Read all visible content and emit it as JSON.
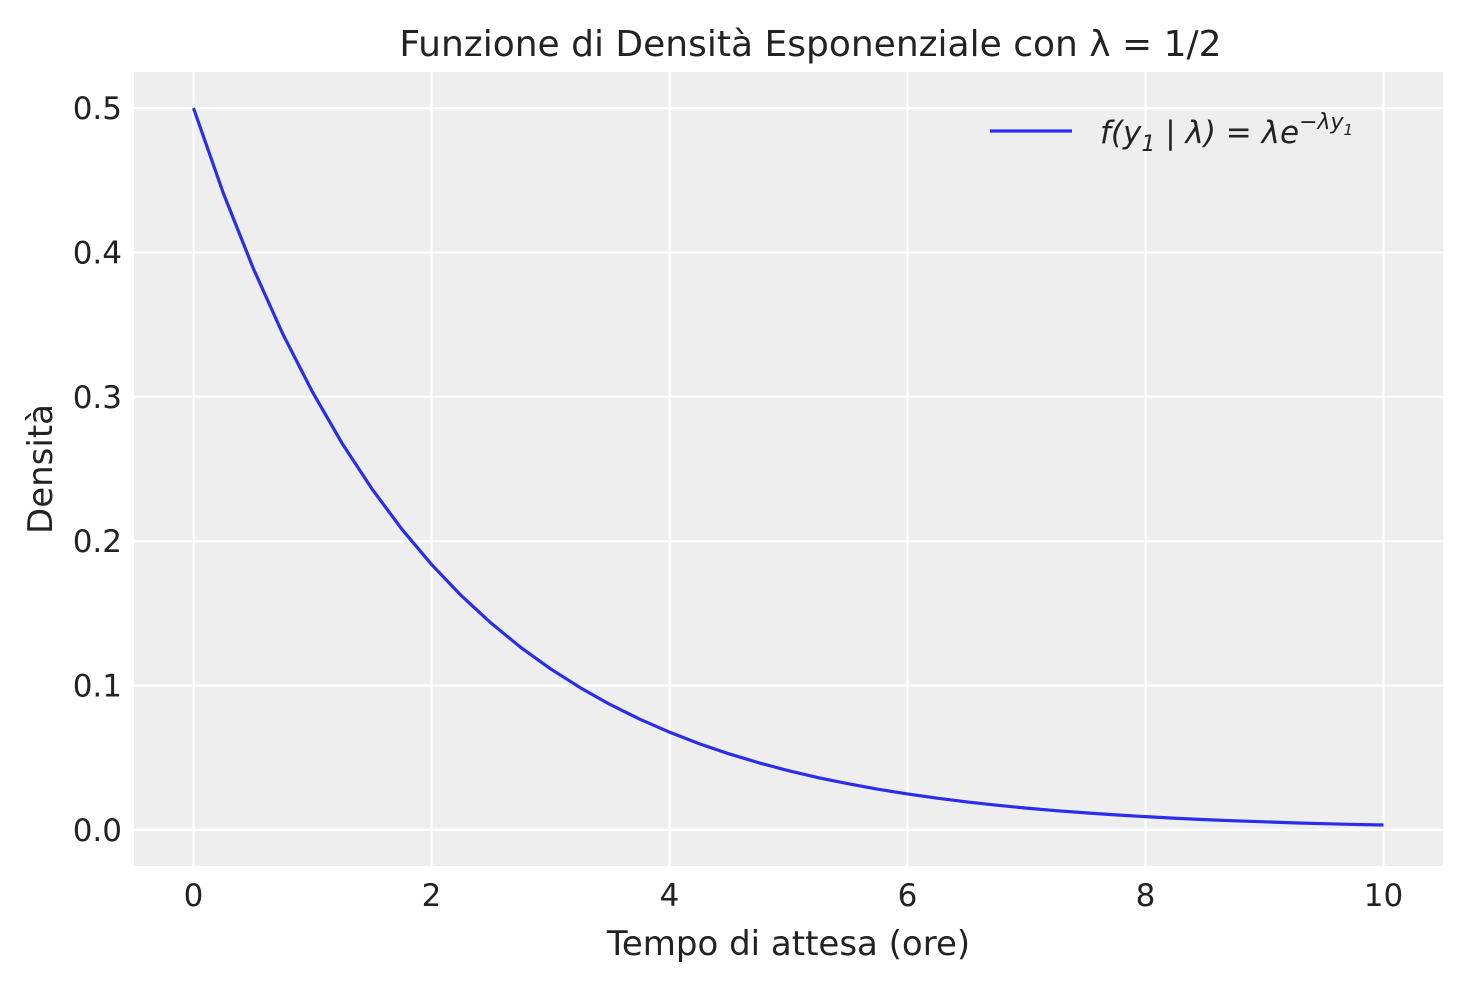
{
  "chart_data": {
    "type": "line",
    "title": "Funzione di Densità Esponenziale con λ = 1/2",
    "xlabel": "Tempo di attesa (ore)",
    "ylabel": "Densità",
    "xlim": [
      -0.5,
      10.5
    ],
    "ylim": [
      -0.025,
      0.525
    ],
    "xticks": [
      0,
      2,
      4,
      6,
      8,
      10
    ],
    "xtick_labels": [
      "0",
      "2",
      "4",
      "6",
      "8",
      "10"
    ],
    "yticks": [
      0.0,
      0.1,
      0.2,
      0.3,
      0.4,
      0.5
    ],
    "ytick_labels": [
      "0.0",
      "0.1",
      "0.2",
      "0.3",
      "0.4",
      "0.5"
    ],
    "grid": true,
    "legend_position": "top-right",
    "series": [
      {
        "name": "f(y₁ | λ) = λe^(−λy₁)",
        "color": "#2a2eec",
        "x": [
          0,
          0.25,
          0.5,
          0.75,
          1,
          1.25,
          1.5,
          1.75,
          2,
          2.25,
          2.5,
          2.75,
          3,
          3.25,
          3.5,
          3.75,
          4,
          4.25,
          4.5,
          4.75,
          5,
          5.25,
          5.5,
          5.75,
          6,
          6.25,
          6.5,
          6.75,
          7,
          7.25,
          7.5,
          7.75,
          8,
          8.25,
          8.5,
          8.75,
          9,
          9.25,
          9.5,
          9.75,
          10
        ],
        "y": [
          0.5,
          0.4412,
          0.3894,
          0.3436,
          0.3033,
          0.2676,
          0.2362,
          0.2084,
          0.1839,
          0.1623,
          0.1433,
          0.1264,
          0.1116,
          0.0985,
          0.0869,
          0.0767,
          0.0677,
          0.0597,
          0.0527,
          0.0465,
          0.041,
          0.0362,
          0.032,
          0.0282,
          0.0249,
          0.022,
          0.0194,
          0.0171,
          0.0151,
          0.0133,
          0.0118,
          0.0104,
          0.0092,
          0.0081,
          0.0071,
          0.0063,
          0.0056,
          0.0049,
          0.0043,
          0.0038,
          0.0034
        ]
      }
    ]
  },
  "colors": {
    "plot_background": "#eeeeee",
    "grid": "#ffffff",
    "line": "#2a2eec"
  }
}
